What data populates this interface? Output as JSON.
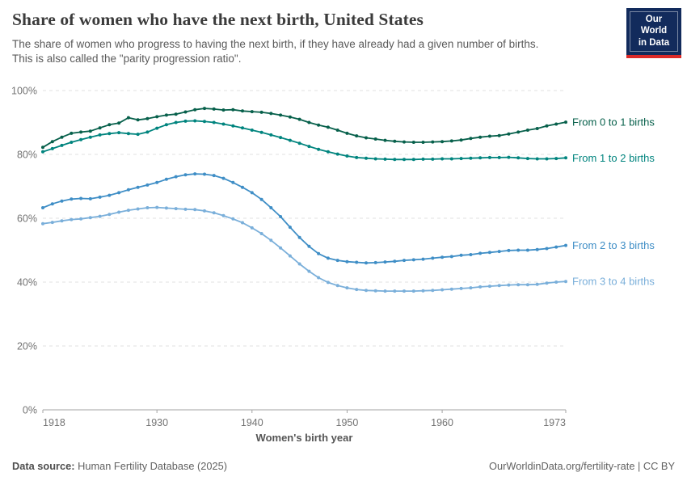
{
  "header": {
    "title": "Share of women who have the next birth, United States",
    "subtitle_lines": [
      "The share of women who progress to having the next birth, if they have already had a given number of births.",
      "This is also called the \"parity progression ratio\"."
    ],
    "logo": {
      "line1": "Our World",
      "line2": "in Data"
    }
  },
  "chart_data": {
    "type": "line",
    "title": "Share of women who have the next birth, United States",
    "xlabel": "Women's birth year",
    "ylabel": "",
    "ylim": [
      0,
      100
    ],
    "yticks": [
      0,
      20,
      40,
      60,
      80,
      100
    ],
    "ytick_suffix": "%",
    "xticks": [
      1918,
      1930,
      1940,
      1950,
      1960,
      1973
    ],
    "grid": "horizontal-dashed",
    "legend_position": "labels-at-line-ends-right",
    "marker": "dot",
    "x": [
      1918,
      1919,
      1920,
      1921,
      1922,
      1923,
      1924,
      1925,
      1926,
      1927,
      1928,
      1929,
      1930,
      1931,
      1932,
      1933,
      1934,
      1935,
      1936,
      1937,
      1938,
      1939,
      1940,
      1941,
      1942,
      1943,
      1944,
      1945,
      1946,
      1947,
      1948,
      1949,
      1950,
      1951,
      1952,
      1953,
      1954,
      1955,
      1956,
      1957,
      1958,
      1959,
      1960,
      1961,
      1962,
      1963,
      1964,
      1965,
      1966,
      1967,
      1968,
      1969,
      1970,
      1971,
      1972,
      1973
    ],
    "series": [
      {
        "name": "From 0 to 1 births",
        "color": "#07604B",
        "values": [
          82.2,
          84.0,
          85.4,
          86.6,
          87.0,
          87.3,
          88.3,
          89.3,
          89.8,
          91.5,
          90.8,
          91.2,
          91.8,
          92.3,
          92.6,
          93.3,
          94.0,
          94.4,
          94.2,
          93.9,
          94.0,
          93.6,
          93.4,
          93.2,
          92.8,
          92.3,
          91.7,
          91.0,
          90.0,
          89.2,
          88.5,
          87.6,
          86.6,
          85.8,
          85.2,
          84.8,
          84.4,
          84.1,
          83.9,
          83.8,
          83.8,
          83.9,
          84.0,
          84.2,
          84.5,
          85.0,
          85.4,
          85.7,
          85.9,
          86.4,
          87.0,
          87.6,
          88.1,
          88.9,
          89.5,
          90.1
        ]
      },
      {
        "name": "From 1 to 2 births",
        "color": "#00847E",
        "values": [
          80.8,
          81.8,
          82.8,
          83.8,
          84.6,
          85.4,
          86.1,
          86.5,
          86.8,
          86.5,
          86.3,
          87.0,
          88.2,
          89.3,
          90.0,
          90.4,
          90.5,
          90.3,
          90.0,
          89.5,
          88.9,
          88.3,
          87.6,
          86.9,
          86.1,
          85.3,
          84.4,
          83.5,
          82.5,
          81.6,
          80.8,
          80.1,
          79.5,
          79.0,
          78.8,
          78.6,
          78.5,
          78.4,
          78.4,
          78.4,
          78.5,
          78.5,
          78.6,
          78.6,
          78.7,
          78.8,
          78.9,
          79.0,
          79.0,
          79.1,
          78.9,
          78.7,
          78.6,
          78.6,
          78.7,
          78.9
        ]
      },
      {
        "name": "From 2 to 3 births",
        "color": "#3F8EC6",
        "values": [
          63.3,
          64.5,
          65.4,
          66.0,
          66.2,
          66.1,
          66.6,
          67.2,
          68.0,
          68.9,
          69.7,
          70.4,
          71.2,
          72.2,
          73.0,
          73.6,
          73.9,
          73.8,
          73.4,
          72.5,
          71.2,
          69.7,
          68.0,
          65.9,
          63.3,
          60.5,
          57.2,
          54.0,
          51.2,
          48.9,
          47.5,
          46.8,
          46.4,
          46.2,
          46.0,
          46.1,
          46.3,
          46.5,
          46.8,
          47.0,
          47.2,
          47.5,
          47.8,
          48.0,
          48.4,
          48.6,
          49.0,
          49.3,
          49.6,
          49.9,
          50.0,
          50.0,
          50.2,
          50.5,
          51.0,
          51.5
        ]
      },
      {
        "name": "From 3 to 4 births",
        "color": "#7AAFDA",
        "values": [
          58.3,
          58.7,
          59.2,
          59.6,
          59.8,
          60.2,
          60.6,
          61.2,
          61.9,
          62.5,
          62.9,
          63.3,
          63.4,
          63.2,
          63.0,
          62.8,
          62.7,
          62.3,
          61.7,
          60.8,
          59.8,
          58.6,
          57.0,
          55.2,
          53.1,
          50.7,
          48.2,
          45.7,
          43.4,
          41.4,
          39.9,
          38.9,
          38.2,
          37.7,
          37.4,
          37.3,
          37.2,
          37.2,
          37.2,
          37.2,
          37.3,
          37.4,
          37.6,
          37.8,
          38.0,
          38.2,
          38.5,
          38.7,
          38.9,
          39.1,
          39.2,
          39.2,
          39.3,
          39.7,
          40.0,
          40.2
        ]
      }
    ]
  },
  "footer": {
    "datasource_label": "Data source:",
    "datasource_value": " Human Fertility Database (2025)",
    "right_text": "OurWorldinData.org/fertility-rate | CC BY"
  }
}
